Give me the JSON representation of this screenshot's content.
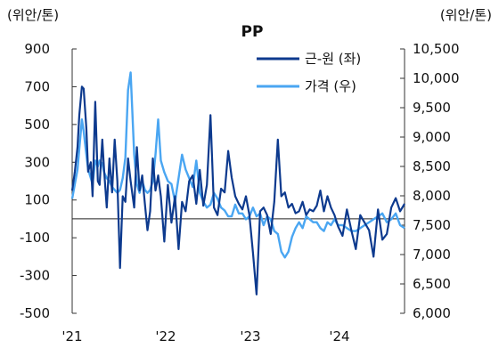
{
  "chart_data": {
    "type": "line",
    "title": "PP",
    "left_unit": "(위안/톤)",
    "right_unit": "(위안/톤)",
    "x_ticks": [
      "'21",
      "'22",
      "'23",
      "'24"
    ],
    "left_axis": {
      "ylim": [
        -500,
        900
      ],
      "ticks": [
        "900",
        "700",
        "500",
        "300",
        "100",
        "-100",
        "-300",
        "-500"
      ]
    },
    "right_axis": {
      "ylim": [
        6000,
        10500
      ],
      "ticks": [
        "10,500",
        "10,000",
        "9,500",
        "9,000",
        "8,500",
        "8,000",
        "7,500",
        "7,000",
        "6,500",
        "6,000"
      ]
    },
    "legend": {
      "placement": "top-right",
      "spread_label": "근-원 (좌)",
      "price_label": "가격 (우)"
    },
    "colors": {
      "spread": "#0d3a8e",
      "price": "#4aa6f2",
      "zero_line": "#222222",
      "axis": "#333333"
    },
    "x_domain": [
      2021.0,
      2024.75
    ],
    "series": [
      {
        "name": "근-원 (좌)",
        "axis": "left",
        "color": "#0d3a8e",
        "x": [
          2021.0,
          2021.03,
          2021.06,
          2021.08,
          2021.11,
          2021.13,
          2021.16,
          2021.18,
          2021.21,
          2021.23,
          2021.26,
          2021.29,
          2021.31,
          2021.34,
          2021.36,
          2021.39,
          2021.42,
          2021.45,
          2021.48,
          2021.51,
          2021.54,
          2021.57,
          2021.6,
          2021.63,
          2021.66,
          2021.7,
          2021.73,
          2021.76,
          2021.79,
          2021.82,
          2021.85,
          2021.88,
          2021.91,
          2021.94,
          2021.97,
          2022.0,
          2022.04,
          2022.08,
          2022.12,
          2022.16,
          2022.2,
          2022.24,
          2022.28,
          2022.32,
          2022.36,
          2022.4,
          2022.44,
          2022.48,
          2022.52,
          2022.56,
          2022.6,
          2022.64,
          2022.68,
          2022.72,
          2022.76,
          2022.8,
          2022.84,
          2022.88,
          2022.92,
          2022.96,
          2023.0,
          2023.04,
          2023.08,
          2023.12,
          2023.16,
          2023.2,
          2023.24,
          2023.28,
          2023.32,
          2023.36,
          2023.4,
          2023.44,
          2023.48,
          2023.52,
          2023.56,
          2023.6,
          2023.64,
          2023.68,
          2023.72,
          2023.76,
          2023.8,
          2023.84,
          2023.88,
          2023.92,
          2023.96,
          2024.0,
          2024.05,
          2024.1,
          2024.15,
          2024.2,
          2024.25,
          2024.3,
          2024.35,
          2024.4,
          2024.45,
          2024.5,
          2024.55,
          2024.6,
          2024.65,
          2024.7,
          2024.75
        ],
        "values": [
          150,
          250,
          380,
          550,
          700,
          690,
          480,
          250,
          300,
          120,
          620,
          200,
          180,
          420,
          260,
          60,
          320,
          140,
          420,
          200,
          -260,
          120,
          90,
          320,
          200,
          60,
          380,
          150,
          230,
          80,
          -60,
          40,
          320,
          150,
          230,
          120,
          -120,
          180,
          -20,
          120,
          -160,
          90,
          40,
          200,
          230,
          80,
          260,
          70,
          180,
          550,
          60,
          20,
          160,
          140,
          360,
          220,
          120,
          80,
          50,
          120,
          20,
          -180,
          -400,
          40,
          60,
          20,
          -80,
          90,
          420,
          120,
          140,
          60,
          80,
          30,
          40,
          90,
          20,
          50,
          40,
          70,
          150,
          40,
          120,
          60,
          20,
          -40,
          -90,
          50,
          -60,
          -160,
          20,
          -20,
          -60,
          -200,
          50,
          -110,
          -80,
          60,
          110,
          40,
          80
        ]
      },
      {
        "name": "가격 (우)",
        "axis": "right",
        "color": "#4aa6f2",
        "x": [
          2021.0,
          2021.03,
          2021.06,
          2021.08,
          2021.11,
          2021.13,
          2021.16,
          2021.18,
          2021.21,
          2021.23,
          2021.26,
          2021.29,
          2021.31,
          2021.34,
          2021.36,
          2021.39,
          2021.42,
          2021.45,
          2021.48,
          2021.51,
          2021.54,
          2021.57,
          2021.6,
          2021.63,
          2021.66,
          2021.7,
          2021.73,
          2021.76,
          2021.79,
          2021.82,
          2021.85,
          2021.88,
          2021.91,
          2021.94,
          2021.97,
          2022.0,
          2022.04,
          2022.08,
          2022.12,
          2022.16,
          2022.2,
          2022.24,
          2022.28,
          2022.32,
          2022.36,
          2022.4,
          2022.44,
          2022.48,
          2022.52,
          2022.56,
          2022.6,
          2022.64,
          2022.68,
          2022.72,
          2022.76,
          2022.8,
          2022.84,
          2022.88,
          2022.92,
          2022.96,
          2023.0,
          2023.04,
          2023.08,
          2023.12,
          2023.16,
          2023.2,
          2023.24,
          2023.28,
          2023.32,
          2023.36,
          2023.4,
          2023.44,
          2023.48,
          2023.52,
          2023.56,
          2023.6,
          2023.64,
          2023.68,
          2023.72,
          2023.76,
          2023.8,
          2023.84,
          2023.88,
          2023.92,
          2023.96,
          2024.0,
          2024.05,
          2024.1,
          2024.15,
          2024.2,
          2024.25,
          2024.3,
          2024.35,
          2024.4,
          2024.45,
          2024.5,
          2024.55,
          2024.6,
          2024.65,
          2024.7,
          2024.75
        ],
        "values": [
          7950,
          8200,
          8450,
          8800,
          9300,
          9100,
          8700,
          8450,
          8300,
          8200,
          8600,
          8500,
          8600,
          8550,
          8400,
          8300,
          8250,
          8150,
          8100,
          8050,
          8100,
          8300,
          8650,
          9800,
          10100,
          8700,
          8200,
          8050,
          8250,
          8100,
          8050,
          8100,
          8250,
          8700,
          9300,
          8600,
          8400,
          8250,
          8200,
          7900,
          8300,
          8700,
          8450,
          8300,
          8150,
          8600,
          8050,
          7900,
          7800,
          7850,
          8050,
          7950,
          7800,
          7750,
          7650,
          7650,
          7850,
          7700,
          7700,
          7600,
          7650,
          7800,
          7650,
          7700,
          7500,
          7650,
          7600,
          7400,
          7350,
          7050,
          6950,
          7050,
          7300,
          7450,
          7550,
          7450,
          7650,
          7600,
          7550,
          7550,
          7450,
          7400,
          7550,
          7500,
          7600,
          7500,
          7500,
          7450,
          7400,
          7400,
          7450,
          7500,
          7550,
          7600,
          7650,
          7700,
          7550,
          7600,
          7700,
          7500,
          7450
        ]
      }
    ]
  }
}
